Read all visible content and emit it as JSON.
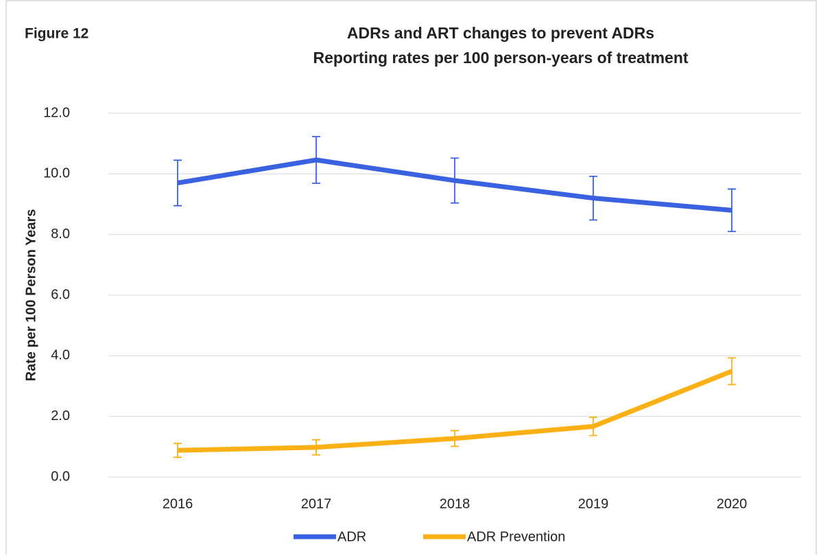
{
  "chart_data": {
    "type": "line",
    "figure_label": "Figure 12",
    "title": "ADRs and ART changes to prevent ADRs",
    "subtitle": "Reporting rates per 100 person-years of treatment",
    "ylabel": "Rate per 100 Person Years",
    "categories": [
      "2016",
      "2017",
      "2018",
      "2019",
      "2020"
    ],
    "series": [
      {
        "name": "ADR",
        "color": "#3a62e0",
        "values": [
          9.7,
          10.46,
          9.78,
          9.2,
          8.8
        ],
        "errors": [
          0.75,
          0.77,
          0.74,
          0.72,
          0.7
        ]
      },
      {
        "name": "ADR Prevention",
        "color": "#fbb116",
        "values": [
          0.88,
          0.98,
          1.27,
          1.67,
          3.49
        ],
        "errors": [
          0.23,
          0.25,
          0.26,
          0.3,
          0.44
        ]
      }
    ],
    "ylim": [
      0,
      12
    ],
    "yticks": [
      {
        "value": 0,
        "label": "0.0"
      },
      {
        "value": 2,
        "label": "2.0"
      },
      {
        "value": 4,
        "label": "4.0"
      },
      {
        "value": 6,
        "label": "6.0"
      },
      {
        "value": 8,
        "label": "8.0"
      },
      {
        "value": 10,
        "label": "10.0"
      },
      {
        "value": 12,
        "label": "12.0"
      }
    ],
    "grid": true,
    "legend": "bottom"
  }
}
